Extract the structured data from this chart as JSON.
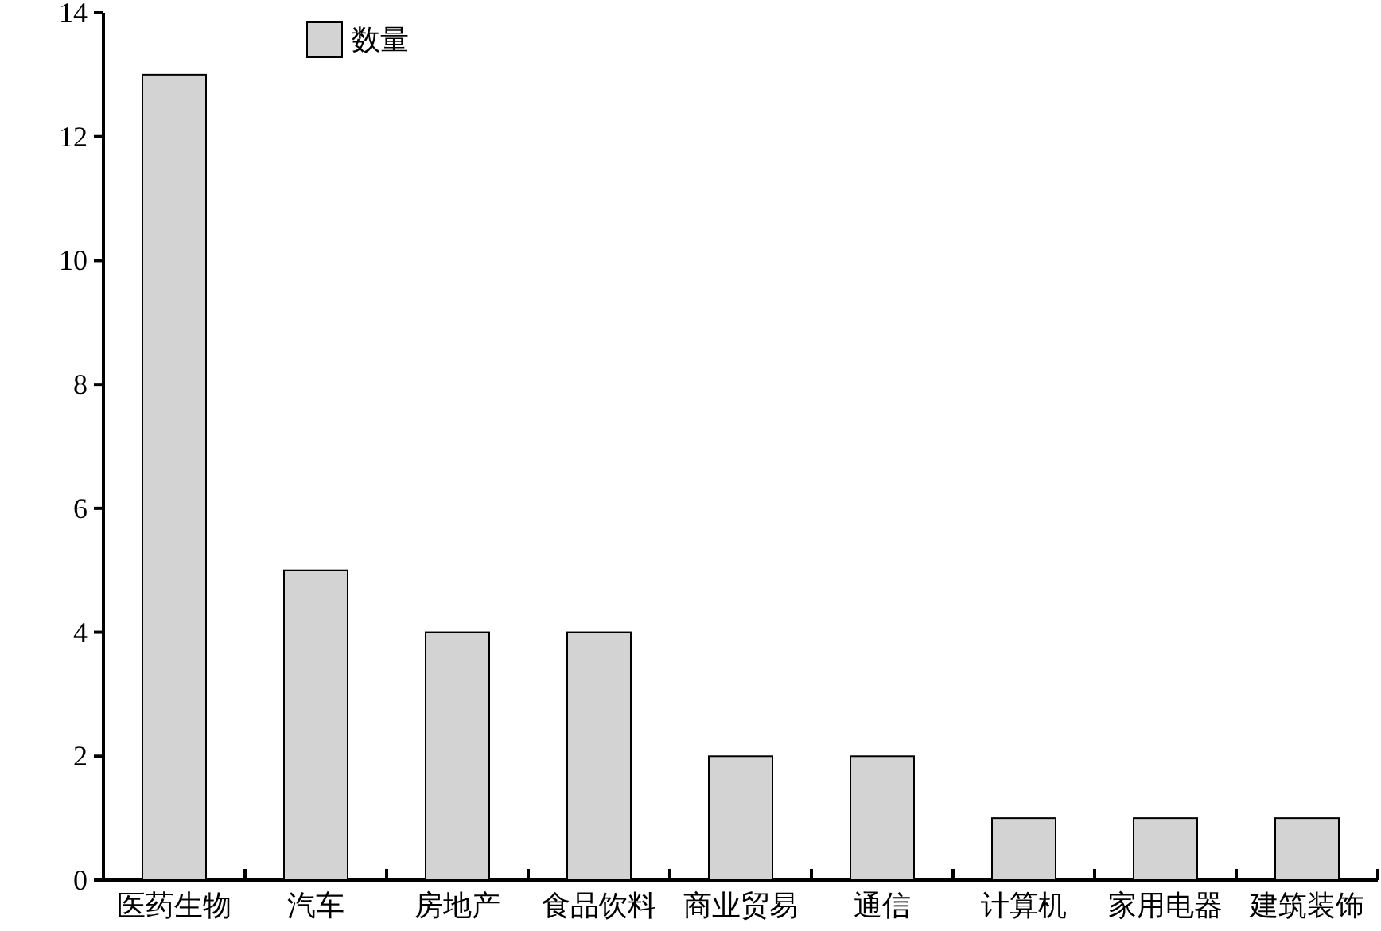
{
  "chart_data": {
    "type": "bar",
    "categories": [
      "医药生物",
      "汽车",
      "房地产",
      "食品饮料",
      "商业贸易",
      "通信",
      "计算机",
      "家用电器",
      "建筑装饰"
    ],
    "series": [
      {
        "name": "数量",
        "color": "#d3d3d3",
        "values": [
          13,
          5,
          4,
          4,
          2,
          2,
          1,
          1,
          1
        ]
      }
    ],
    "ylim": [
      0,
      14
    ],
    "yticks": [
      0,
      2,
      4,
      6,
      8,
      10,
      12,
      14
    ],
    "legend": "top left",
    "grid": false
  }
}
